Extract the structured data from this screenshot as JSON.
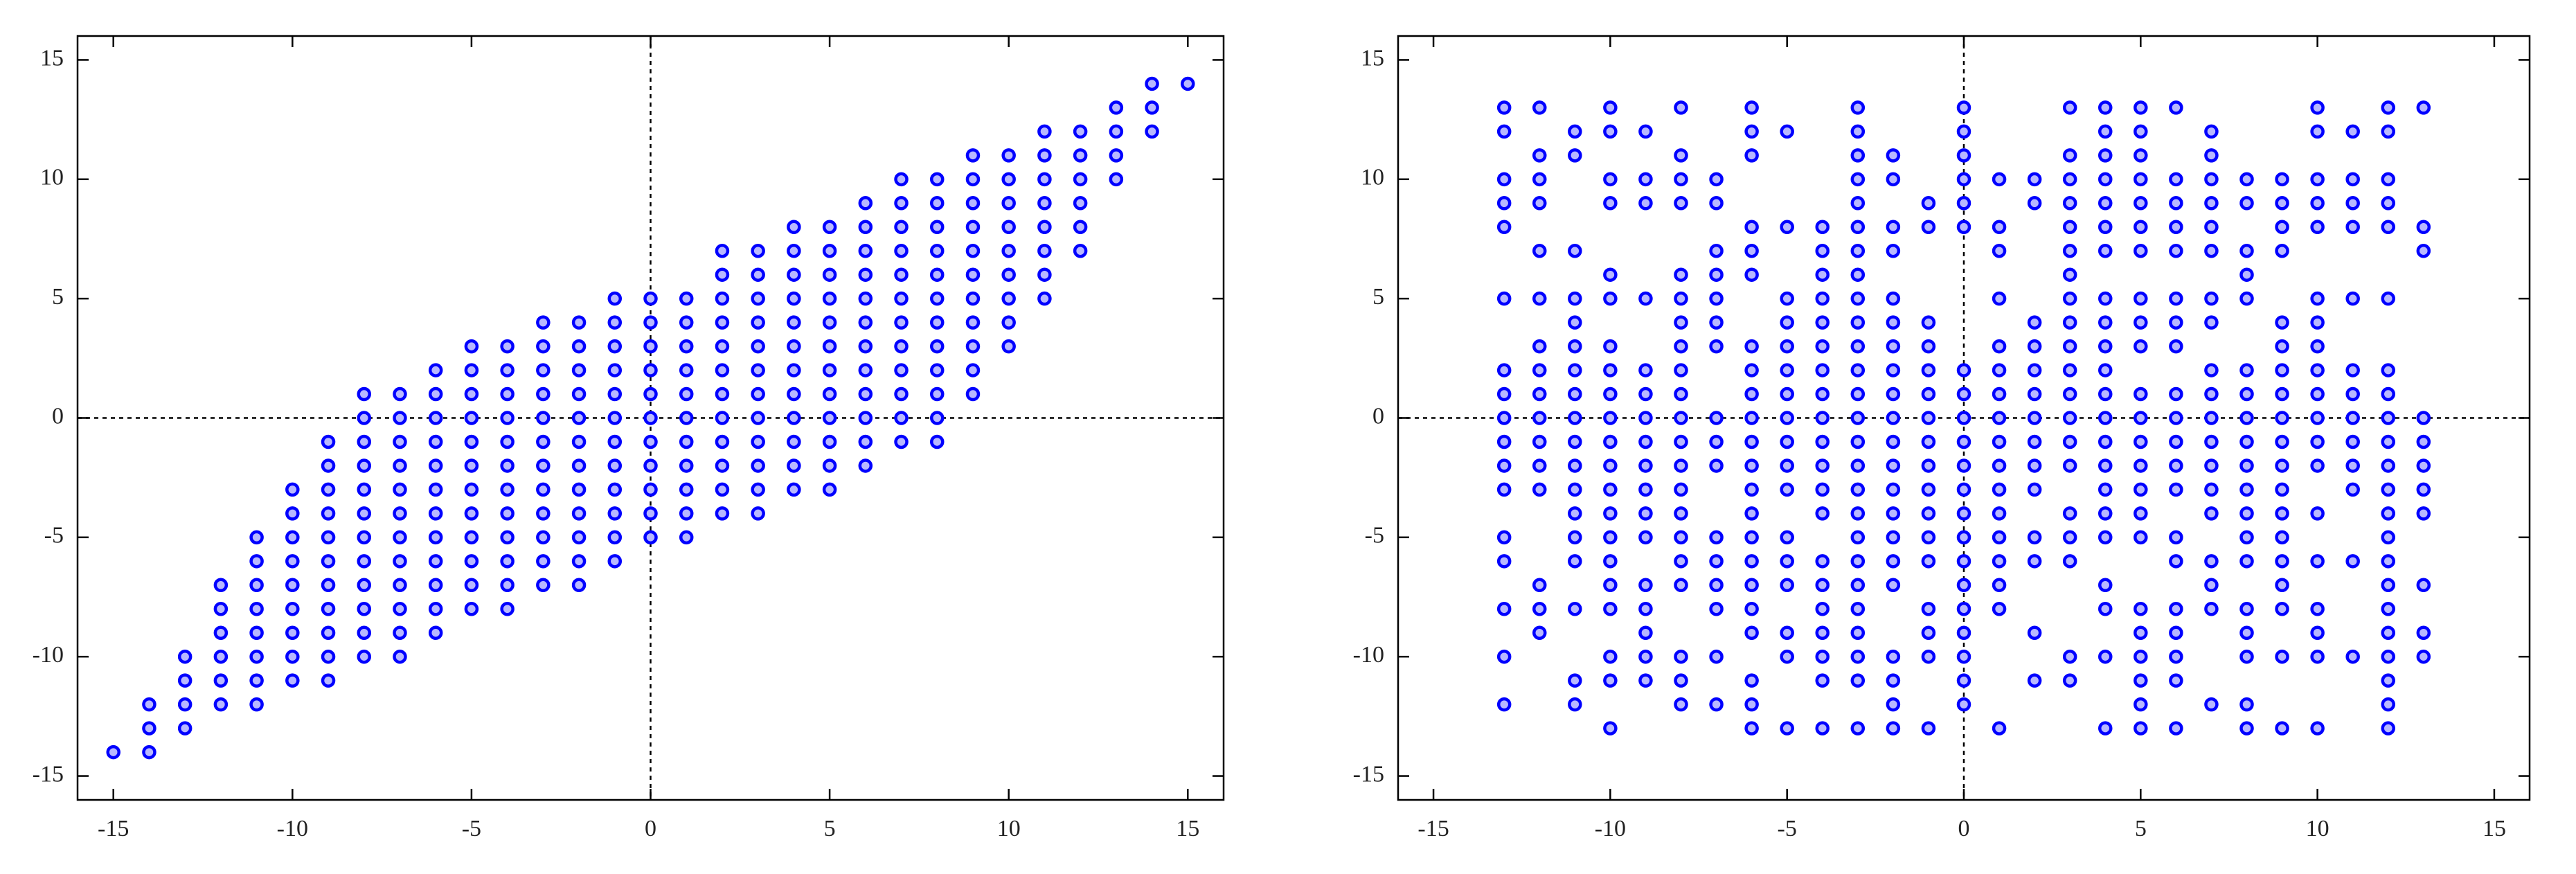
{
  "chart_data": [
    {
      "type": "scatter",
      "color": "#0000ff",
      "zero_lines": true,
      "xlim": [
        -16,
        16
      ],
      "ylim": [
        -16,
        16
      ],
      "xticks": [
        -15,
        -10,
        -5,
        0,
        5,
        10,
        15
      ],
      "yticks": [
        -15,
        -10,
        -5,
        0,
        5,
        10,
        15
      ],
      "x": [
        -15,
        -14,
        -14,
        -14,
        -13,
        -13,
        -13,
        -13,
        -12,
        -12,
        -12,
        -12,
        -12,
        -12,
        -11,
        -11,
        -11,
        -11,
        -11,
        -11,
        -11,
        -11,
        -10,
        -10,
        -10,
        -10,
        -10,
        -10,
        -10,
        -10,
        -10,
        -9,
        -9,
        -9,
        -9,
        -9,
        -9,
        -9,
        -9,
        -9,
        -9,
        -9,
        -8,
        -8,
        -8,
        -8,
        -8,
        -8,
        -8,
        -8,
        -8,
        -8,
        -8,
        -8,
        -7,
        -7,
        -7,
        -7,
        -7,
        -7,
        -7,
        -7,
        -7,
        -7,
        -7,
        -7,
        -6,
        -6,
        -6,
        -6,
        -6,
        -6,
        -6,
        -6,
        -6,
        -6,
        -6,
        -6,
        -5,
        -5,
        -5,
        -5,
        -5,
        -5,
        -5,
        -5,
        -5,
        -5,
        -5,
        -5,
        -4,
        -4,
        -4,
        -4,
        -4,
        -4,
        -4,
        -4,
        -4,
        -4,
        -4,
        -4,
        -3,
        -3,
        -3,
        -3,
        -3,
        -3,
        -3,
        -3,
        -3,
        -3,
        -3,
        -3,
        -2,
        -2,
        -2,
        -2,
        -2,
        -2,
        -2,
        -2,
        -2,
        -2,
        -2,
        -2,
        -1,
        -1,
        -1,
        -1,
        -1,
        -1,
        -1,
        -1,
        -1,
        -1,
        -1,
        -1,
        0,
        0,
        0,
        0,
        0,
        0,
        0,
        0,
        0,
        0,
        0,
        1,
        1,
        1,
        1,
        1,
        1,
        1,
        1,
        1,
        1,
        1,
        2,
        2,
        2,
        2,
        2,
        2,
        2,
        2,
        2,
        2,
        2,
        2,
        3,
        3,
        3,
        3,
        3,
        3,
        3,
        3,
        3,
        3,
        3,
        3,
        4,
        4,
        4,
        4,
        4,
        4,
        4,
        4,
        4,
        4,
        4,
        4,
        5,
        5,
        5,
        5,
        5,
        5,
        5,
        5,
        5,
        5,
        5,
        5,
        6,
        6,
        6,
        6,
        6,
        6,
        6,
        6,
        6,
        6,
        6,
        6,
        7,
        7,
        7,
        7,
        7,
        7,
        7,
        7,
        7,
        7,
        7,
        7,
        8,
        8,
        8,
        8,
        8,
        8,
        8,
        8,
        8,
        8,
        8,
        8,
        9,
        9,
        9,
        9,
        9,
        9,
        9,
        9,
        9,
        9,
        9,
        10,
        10,
        10,
        10,
        10,
        10,
        10,
        10,
        10,
        11,
        11,
        11,
        11,
        11,
        11,
        11,
        11,
        12,
        12,
        12,
        12,
        12,
        12,
        13,
        13,
        13,
        13,
        14,
        14,
        14,
        15
      ],
      "y": [
        -14,
        -14,
        -13,
        -12,
        -13,
        -12,
        -11,
        -10,
        -12,
        -11,
        -10,
        -9,
        -8,
        -7,
        -12,
        -11,
        -10,
        -9,
        -8,
        -7,
        -6,
        -5,
        -11,
        -10,
        -9,
        -8,
        -7,
        -6,
        -5,
        -4,
        -3,
        -11,
        -10,
        -9,
        -8,
        -7,
        -6,
        -5,
        -4,
        -3,
        -2,
        -1,
        -10,
        -9,
        -8,
        -7,
        -6,
        -5,
        -4,
        -3,
        -2,
        -1,
        0,
        1,
        -10,
        -9,
        -8,
        -7,
        -6,
        -5,
        -4,
        -3,
        -2,
        -1,
        0,
        1,
        -9,
        -8,
        -7,
        -6,
        -5,
        -4,
        -3,
        -2,
        -1,
        0,
        1,
        2,
        -8,
        -7,
        -6,
        -5,
        -4,
        -3,
        -2,
        -1,
        0,
        1,
        2,
        3,
        -8,
        -7,
        -6,
        -5,
        -4,
        -3,
        -2,
        -1,
        0,
        1,
        2,
        3,
        -7,
        -6,
        -5,
        -4,
        -3,
        -2,
        -1,
        0,
        1,
        2,
        3,
        4,
        -7,
        -6,
        -5,
        -4,
        -3,
        -2,
        -1,
        0,
        1,
        2,
        3,
        4,
        -6,
        -5,
        -4,
        -3,
        -2,
        -1,
        0,
        1,
        2,
        3,
        4,
        5,
        -5,
        -4,
        -3,
        -2,
        -1,
        0,
        1,
        2,
        3,
        4,
        5,
        -5,
        -4,
        -3,
        -2,
        -1,
        0,
        1,
        2,
        3,
        4,
        5,
        -4,
        -3,
        -2,
        -1,
        0,
        1,
        2,
        3,
        4,
        5,
        6,
        7,
        -4,
        -3,
        -2,
        -1,
        0,
        1,
        2,
        3,
        4,
        5,
        6,
        7,
        -3,
        -2,
        -1,
        0,
        1,
        2,
        3,
        4,
        5,
        6,
        7,
        8,
        -3,
        -2,
        -1,
        0,
        1,
        2,
        3,
        4,
        5,
        6,
        7,
        8,
        -2,
        -1,
        0,
        1,
        2,
        3,
        4,
        5,
        6,
        7,
        8,
        9,
        -1,
        0,
        1,
        2,
        3,
        4,
        5,
        6,
        7,
        8,
        9,
        10,
        -1,
        0,
        1,
        2,
        3,
        4,
        5,
        6,
        7,
        8,
        9,
        10,
        1,
        2,
        3,
        4,
        5,
        6,
        7,
        8,
        9,
        10,
        11,
        3,
        4,
        5,
        6,
        7,
        8,
        9,
        10,
        11,
        5,
        6,
        7,
        8,
        9,
        10,
        11,
        12,
        7,
        8,
        9,
        10,
        11,
        12,
        10,
        11,
        12,
        13,
        12,
        13,
        14,
        14
      ]
    },
    {
      "type": "scatter",
      "color": "#0000ff",
      "zero_lines": true,
      "xlim": [
        -16,
        16
      ],
      "ylim": [
        -16,
        16
      ],
      "xticks": [
        -15,
        -10,
        -5,
        0,
        5,
        10,
        15
      ],
      "yticks": [
        -15,
        -10,
        -5,
        0,
        5,
        10,
        15
      ],
      "x": [
        -13,
        -13,
        -13,
        -13,
        -13,
        -13,
        -13,
        -13,
        -13,
        -13,
        -13,
        -13,
        -13,
        -13,
        -13,
        -13,
        -13,
        -12,
        -12,
        -12,
        -12,
        -12,
        -12,
        -12,
        -12,
        -12,
        -12,
        -12,
        -12,
        -12,
        -12,
        -12,
        -12,
        -11,
        -11,
        -11,
        -11,
        -11,
        -11,
        -11,
        -11,
        -11,
        -11,
        -11,
        -11,
        -11,
        -11,
        -11,
        -11,
        -11,
        -11,
        -10,
        -10,
        -10,
        -10,
        -10,
        -10,
        -10,
        -10,
        -10,
        -10,
        -10,
        -10,
        -10,
        -10,
        -10,
        -10,
        -10,
        -10,
        -10,
        -10,
        -10,
        -9,
        -9,
        -9,
        -9,
        -9,
        -9,
        -9,
        -9,
        -9,
        -9,
        -9,
        -9,
        -9,
        -9,
        -9,
        -9,
        -9,
        -8,
        -8,
        -8,
        -8,
        -8,
        -8,
        -8,
        -8,
        -8,
        -8,
        -8,
        -8,
        -8,
        -8,
        -8,
        -8,
        -8,
        -8,
        -8,
        -8,
        -8,
        -7,
        -7,
        -7,
        -7,
        -7,
        -7,
        -7,
        -7,
        -7,
        -7,
        -7,
        -7,
        -7,
        -7,
        -7,
        -7,
        -6,
        -6,
        -6,
        -6,
        -6,
        -6,
        -6,
        -6,
        -6,
        -6,
        -6,
        -6,
        -6,
        -6,
        -6,
        -6,
        -6,
        -6,
        -6,
        -6,
        -6,
        -6,
        -5,
        -5,
        -5,
        -5,
        -5,
        -5,
        -5,
        -5,
        -5,
        -5,
        -5,
        -5,
        -5,
        -5,
        -5,
        -5,
        -5,
        -4,
        -4,
        -4,
        -4,
        -4,
        -4,
        -4,
        -4,
        -4,
        -4,
        -4,
        -4,
        -4,
        -4,
        -4,
        -4,
        -4,
        -4,
        -4,
        -4,
        -3,
        -3,
        -3,
        -3,
        -3,
        -3,
        -3,
        -3,
        -3,
        -3,
        -3,
        -3,
        -3,
        -3,
        -3,
        -3,
        -3,
        -3,
        -3,
        -3,
        -3,
        -3,
        -3,
        -3,
        -3,
        -3,
        -2,
        -2,
        -2,
        -2,
        -2,
        -2,
        -2,
        -2,
        -2,
        -2,
        -2,
        -2,
        -2,
        -2,
        -2,
        -2,
        -2,
        -2,
        -2,
        -2,
        -2,
        -1,
        -1,
        -1,
        -1,
        -1,
        -1,
        -1,
        -1,
        -1,
        -1,
        -1,
        -1,
        -1,
        -1,
        -1,
        -1,
        -1,
        0,
        0,
        0,
        0,
        0,
        0,
        0,
        0,
        0,
        0,
        0,
        0,
        0,
        0,
        0,
        0,
        0,
        0,
        0,
        0,
        0,
        1,
        1,
        1,
        1,
        1,
        1,
        1,
        1,
        1,
        1,
        1,
        1,
        1,
        1,
        1,
        1,
        1,
        2,
        2,
        2,
        2,
        2,
        2,
        2,
        2,
        2,
        2,
        2,
        2,
        2,
        2,
        3,
        3,
        3,
        3,
        3,
        3,
        3,
        3,
        3,
        3,
        3,
        3,
        3,
        3,
        3,
        3,
        3,
        3,
        3,
        3,
        4,
        4,
        4,
        4,
        4,
        4,
        4,
        4,
        4,
        4,
        4,
        4,
        4,
        4,
        4,
        4,
        4,
        4,
        4,
        4,
        4,
        4,
        5,
        5,
        5,
        5,
        5,
        5,
        5,
        5,
        5,
        5,
        5,
        5,
        5,
        5,
        5,
        5,
        5,
        5,
        5,
        5,
        5,
        5,
        5,
        6,
        6,
        6,
        6,
        6,
        6,
        6,
        6,
        6,
        6,
        6,
        6,
        6,
        6,
        6,
        6,
        6,
        6,
        6,
        6,
        7,
        7,
        7,
        7,
        7,
        7,
        7,
        7,
        7,
        7,
        7,
        7,
        7,
        7,
        7,
        7,
        7,
        7,
        7,
        8,
        8,
        8,
        8,
        8,
        8,
        8,
        8,
        8,
        8,
        8,
        8,
        8,
        8,
        8,
        8,
        8,
        8,
        8,
        9,
        9,
        9,
        9,
        9,
        9,
        9,
        9,
        9,
        9,
        9,
        9,
        9,
        9,
        9,
        9,
        9,
        9,
        9,
        10,
        10,
        10,
        10,
        10,
        10,
        10,
        10,
        10,
        10,
        10,
        10,
        10,
        10,
        10,
        10,
        10,
        10,
        10,
        11,
        11,
        11,
        11,
        11,
        11,
        11,
        11,
        11,
        11,
        11,
        11,
        11,
        12,
        12,
        12,
        12,
        12,
        12,
        12,
        12,
        12,
        12,
        12,
        12,
        12,
        12,
        12,
        12,
        12,
        12,
        12,
        12,
        12,
        12,
        13,
        13,
        13,
        13,
        13,
        13,
        13,
        13,
        13,
        13,
        13
      ],
      "y": [
        13,
        12,
        10,
        9,
        8,
        5,
        2,
        1,
        0,
        -1,
        -2,
        -3,
        -5,
        -6,
        -8,
        -10,
        -12,
        13,
        11,
        10,
        9,
        7,
        5,
        3,
        2,
        1,
        0,
        -1,
        -2,
        -3,
        -7,
        -8,
        -9,
        12,
        11,
        7,
        5,
        4,
        3,
        2,
        1,
        0,
        -1,
        -2,
        -3,
        -4,
        -5,
        -6,
        -8,
        -11,
        -12,
        13,
        12,
        10,
        9,
        6,
        5,
        3,
        2,
        1,
        0,
        -1,
        -2,
        -3,
        -4,
        -5,
        -6,
        -7,
        -8,
        -10,
        -11,
        -13,
        12,
        10,
        9,
        5,
        2,
        1,
        0,
        -1,
        -2,
        -3,
        -4,
        -5,
        -7,
        -8,
        -9,
        -10,
        -11,
        13,
        11,
        10,
        9,
        6,
        5,
        4,
        3,
        2,
        1,
        0,
        -1,
        -2,
        -3,
        -4,
        -5,
        -6,
        -7,
        -10,
        -11,
        -12,
        10,
        9,
        7,
        6,
        5,
        4,
        3,
        0,
        -1,
        -2,
        -5,
        -6,
        -7,
        -8,
        -10,
        -12,
        13,
        12,
        11,
        8,
        7,
        6,
        3,
        2,
        1,
        0,
        -1,
        -2,
        -3,
        -4,
        -5,
        -6,
        -7,
        -8,
        -9,
        -11,
        -12,
        -13,
        12,
        8,
        5,
        4,
        3,
        2,
        1,
        0,
        -1,
        -2,
        -3,
        -5,
        -6,
        -7,
        -9,
        -10,
        -13,
        8,
        7,
        6,
        5,
        4,
        3,
        2,
        1,
        0,
        -1,
        -2,
        -3,
        -4,
        -6,
        -7,
        -8,
        -9,
        -10,
        -11,
        -13,
        13,
        12,
        11,
        10,
        9,
        8,
        7,
        6,
        5,
        4,
        3,
        2,
        1,
        0,
        -1,
        -2,
        -3,
        -4,
        -5,
        -6,
        -7,
        -8,
        -9,
        -10,
        -11,
        -13,
        11,
        10,
        8,
        7,
        5,
        4,
        3,
        2,
        1,
        0,
        -1,
        -2,
        -3,
        -4,
        -5,
        -6,
        -7,
        -10,
        -11,
        -12,
        -13,
        9,
        8,
        4,
        3,
        2,
        1,
        0,
        -1,
        -2,
        -3,
        -4,
        -5,
        -6,
        -8,
        -9,
        -10,
        -13,
        13,
        12,
        11,
        10,
        9,
        8,
        2,
        1,
        0,
        -1,
        -2,
        -3,
        -4,
        -5,
        -6,
        -7,
        -8,
        -9,
        -10,
        -11,
        -12,
        10,
        8,
        7,
        5,
        3,
        2,
        1,
        0,
        -1,
        -2,
        -3,
        -4,
        -5,
        -6,
        -7,
        -8,
        -13,
        10,
        9,
        4,
        3,
        2,
        1,
        0,
        -1,
        -2,
        -3,
        -5,
        -6,
        -9,
        -11,
        13,
        11,
        10,
        9,
        8,
        7,
        6,
        5,
        4,
        3,
        2,
        1,
        0,
        -1,
        -2,
        -4,
        -5,
        -6,
        -10,
        -11,
        13,
        12,
        11,
        10,
        9,
        8,
        7,
        5,
        4,
        3,
        2,
        1,
        0,
        -1,
        -2,
        -3,
        -4,
        -5,
        -7,
        -8,
        -10,
        -13,
        13,
        12,
        11,
        10,
        9,
        8,
        7,
        5,
        4,
        3,
        1,
        0,
        -1,
        -2,
        -3,
        -4,
        -5,
        -8,
        -9,
        -10,
        -11,
        -12,
        -13,
        13,
        10,
        9,
        8,
        7,
        5,
        4,
        3,
        1,
        0,
        -1,
        -2,
        -3,
        -5,
        -6,
        -8,
        -9,
        -10,
        -11,
        -13,
        12,
        11,
        10,
        9,
        8,
        7,
        5,
        4,
        2,
        1,
        0,
        -1,
        -2,
        -3,
        -4,
        -6,
        -7,
        -8,
        -12,
        10,
        9,
        7,
        6,
        5,
        2,
        1,
        0,
        -1,
        -2,
        -3,
        -4,
        -5,
        -6,
        -8,
        -9,
        -10,
        -12,
        -13,
        10,
        9,
        8,
        7,
        4,
        3,
        2,
        1,
        0,
        -1,
        -2,
        -3,
        -4,
        -5,
        -6,
        -7,
        -8,
        -10,
        -13,
        13,
        12,
        10,
        9,
        8,
        5,
        4,
        3,
        2,
        1,
        0,
        -1,
        -2,
        -4,
        -6,
        -8,
        -9,
        -10,
        -13,
        12,
        10,
        9,
        8,
        5,
        2,
        1,
        0,
        -1,
        -2,
        -3,
        -6,
        -10,
        13,
        12,
        10,
        9,
        8,
        5,
        2,
        1,
        0,
        -1,
        -2,
        -3,
        -4,
        -5,
        -6,
        -7,
        -8,
        -9,
        -10,
        -11,
        -12,
        -13,
        13,
        8,
        7,
        0,
        -1,
        -2,
        -3,
        -4,
        -7,
        -9,
        -10
      ]
    }
  ]
}
